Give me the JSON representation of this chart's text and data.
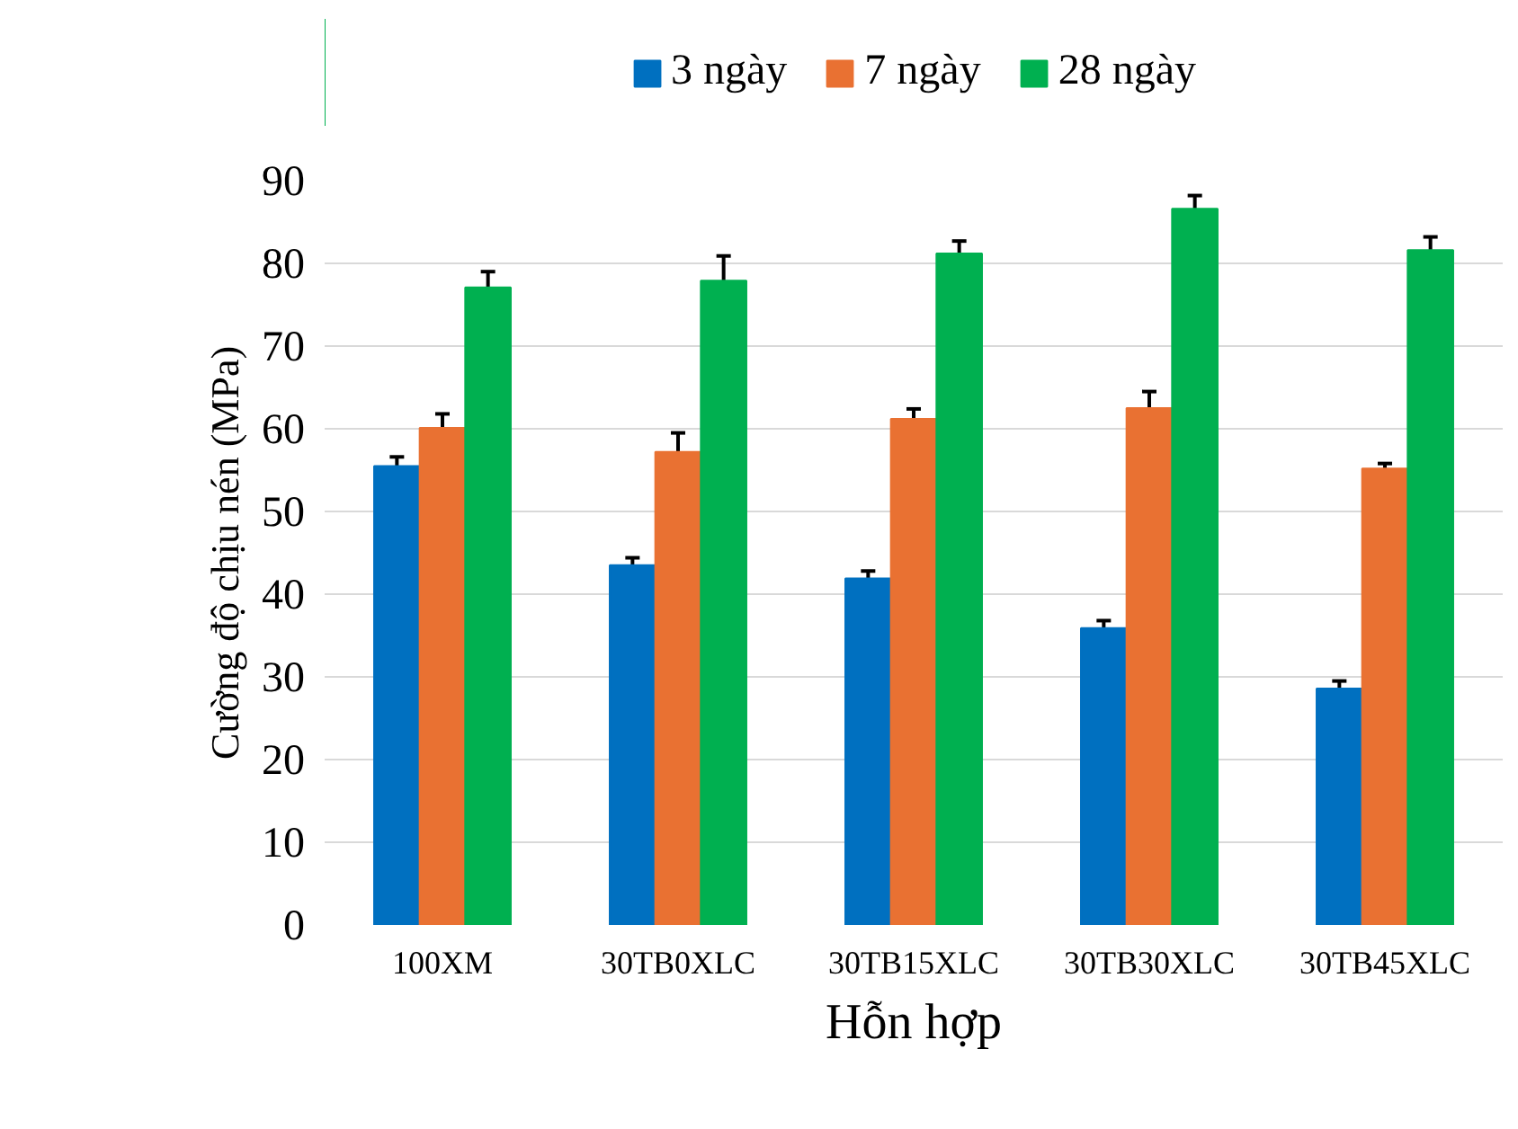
{
  "chart_data": {
    "type": "bar",
    "xlabel": "Hỗn hợp",
    "ylabel": "Cường độ chịu nén (MPa)",
    "categories": [
      "100XM",
      "30TB0XLC",
      "30TB15XLC",
      "30TB30XLC",
      "30TB45XLC"
    ],
    "series": [
      {
        "name": "3 ngày",
        "color": "#0070c0",
        "values": [
          55.5,
          43.5,
          41.9,
          35.9,
          28.6
        ],
        "errors": [
          1.1,
          0.9,
          0.9,
          0.9,
          0.9
        ]
      },
      {
        "name": "7 ngày",
        "color": "#e97132",
        "values": [
          60.1,
          57.2,
          61.2,
          62.5,
          55.2
        ],
        "errors": [
          1.7,
          2.3,
          1.2,
          2.0,
          0.6
        ]
      },
      {
        "name": "28 ngày",
        "color": "#00b050",
        "values": [
          77.1,
          77.9,
          81.2,
          86.6,
          81.6
        ],
        "errors": [
          1.9,
          3.0,
          1.5,
          1.6,
          1.6
        ]
      }
    ],
    "ylim": [
      0,
      90
    ],
    "yticks": [
      0,
      10,
      20,
      30,
      40,
      50,
      60,
      70,
      80,
      90
    ],
    "grid": "y",
    "legend": "top"
  }
}
